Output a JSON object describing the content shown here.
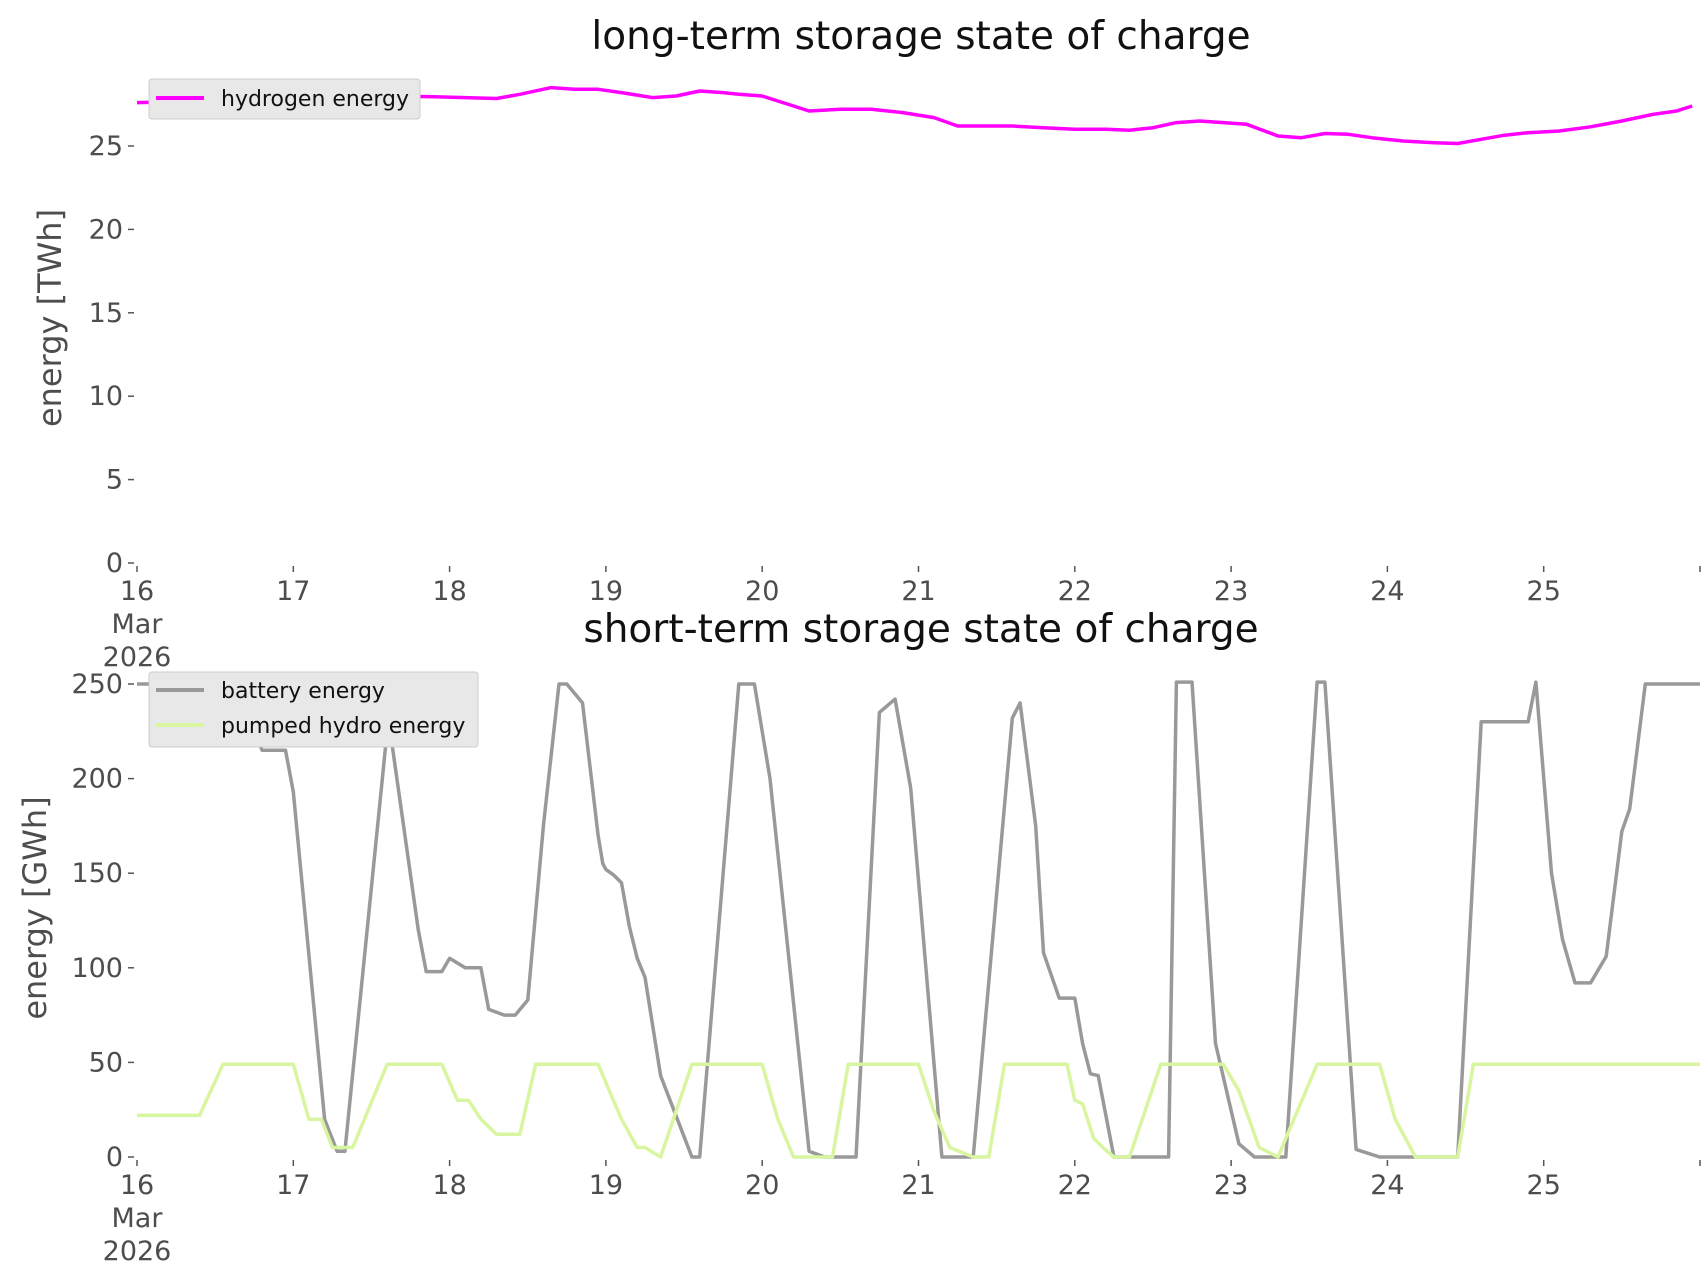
{
  "chart_data": [
    {
      "type": "line",
      "title": "long-term storage state of charge",
      "xlabel": "",
      "ylabel": "energy [TWh]",
      "x_tick_labels": [
        "16\nMar\n2026",
        "17",
        "18",
        "19",
        "20",
        "21",
        "22",
        "23",
        "24",
        "25"
      ],
      "xlim": [
        "2026-03-16",
        "2026-03-26"
      ],
      "ylim": [
        0,
        28.5
      ],
      "y_ticks": [
        0,
        5,
        10,
        15,
        20,
        25
      ],
      "grid": false,
      "legend": "top-left",
      "series": [
        {
          "name": "hydrogen energy",
          "color": "#ff00ff",
          "x_day_offsets": [
            0,
            0.5,
            0.8,
            1.0,
            1.3,
            1.6,
            1.9,
            2.1,
            2.3,
            2.45,
            2.65,
            2.8,
            2.95,
            3.1,
            3.3,
            3.45,
            3.6,
            3.75,
            3.85,
            4.0,
            4.2,
            4.3,
            4.5,
            4.7,
            4.9,
            5.1,
            5.25,
            5.4,
            5.6,
            5.8,
            6.0,
            6.2,
            6.35,
            6.5,
            6.65,
            6.8,
            6.95,
            7.1,
            7.3,
            7.45,
            7.6,
            7.75,
            7.9,
            8.1,
            8.3,
            8.45,
            8.6,
            8.75,
            8.9,
            9.1,
            9.3,
            9.5,
            9.7,
            9.85,
            9.95
          ],
          "values": [
            27.6,
            27.7,
            27.9,
            28.0,
            28.0,
            28.0,
            27.95,
            27.9,
            27.85,
            28.1,
            28.5,
            28.4,
            28.4,
            28.2,
            27.9,
            28.0,
            28.3,
            28.2,
            28.1,
            28.0,
            27.4,
            27.1,
            27.2,
            27.2,
            27.0,
            26.7,
            26.2,
            26.2,
            26.2,
            26.1,
            26.0,
            26.0,
            25.95,
            26.1,
            26.4,
            26.5,
            26.4,
            26.3,
            25.6,
            25.5,
            25.75,
            25.7,
            25.5,
            25.3,
            25.2,
            25.15,
            25.4,
            25.65,
            25.8,
            25.9,
            26.15,
            26.5,
            26.9,
            27.1,
            27.4
          ]
        }
      ]
    },
    {
      "type": "line",
      "title": "short-term storage state of charge",
      "xlabel": "",
      "ylabel": "energy [GWh]",
      "x_tick_labels": [
        "16\nMar\n2026",
        "17",
        "18",
        "19",
        "20",
        "21",
        "22",
        "23",
        "24",
        "25"
      ],
      "xlim": [
        "2026-03-16",
        "2026-03-26"
      ],
      "ylim": [
        0,
        250
      ],
      "y_ticks": [
        0,
        50,
        100,
        150,
        200,
        250
      ],
      "grid": false,
      "legend": "top-left",
      "series": [
        {
          "name": "battery energy",
          "color": "#999999",
          "x_day_offsets": [
            0,
            0.65,
            0.8,
            0.95,
            1.0,
            1.2,
            1.28,
            1.33,
            1.6,
            1.62,
            1.8,
            1.85,
            1.95,
            2.0,
            2.1,
            2.2,
            2.25,
            2.35,
            2.42,
            2.5,
            2.6,
            2.7,
            2.75,
            2.85,
            2.95,
            2.98,
            3.0,
            3.05,
            3.1,
            3.15,
            3.2,
            3.25,
            3.35,
            3.55,
            3.6,
            3.85,
            3.95,
            4.05,
            4.3,
            4.4,
            4.5,
            4.6,
            4.75,
            4.85,
            4.95,
            5.15,
            5.3,
            5.35,
            5.6,
            5.65,
            5.75,
            5.8,
            5.9,
            6.0,
            6.05,
            6.1,
            6.15,
            6.25,
            6.5,
            6.6,
            6.65,
            6.75,
            6.9,
            7.05,
            7.15,
            7.25,
            7.35,
            7.55,
            7.6,
            7.8,
            7.95,
            8.15,
            8.45,
            8.6,
            8.8,
            8.9,
            8.95,
            9.05,
            9.12,
            9.2,
            9.3,
            9.4,
            9.5,
            9.55,
            9.65,
            10.0
          ],
          "values": [
            250,
            250,
            215,
            215,
            193,
            20,
            3,
            3,
            225,
            225,
            120,
            98,
            98,
            105,
            100,
            100,
            78,
            75,
            75,
            83,
            175,
            250,
            250,
            240,
            170,
            155,
            152,
            149,
            145,
            122,
            105,
            95,
            43,
            0,
            0,
            250,
            250,
            200,
            3,
            0,
            0,
            0,
            235,
            242,
            195,
            0,
            0,
            0,
            232,
            240,
            175,
            108,
            84,
            84,
            60,
            44,
            43,
            0,
            0,
            0,
            251,
            251,
            60,
            7,
            0,
            0,
            0,
            251,
            251,
            4,
            0,
            0,
            0,
            230,
            230,
            230,
            251,
            150,
            115,
            92,
            92,
            106,
            172,
            184,
            250,
            250
          ]
        },
        {
          "name": "pumped hydro energy",
          "color": "#d8f5a0",
          "x_day_offsets": [
            0,
            0.4,
            0.55,
            1.0,
            1.1,
            1.18,
            1.25,
            1.3,
            1.38,
            1.6,
            1.95,
            2.05,
            2.12,
            2.2,
            2.3,
            2.35,
            2.45,
            2.55,
            2.95,
            3.1,
            3.2,
            3.25,
            3.35,
            3.55,
            3.75,
            4.0,
            4.1,
            4.2,
            4.3,
            4.45,
            4.55,
            4.85,
            5.0,
            5.1,
            5.2,
            5.35,
            5.45,
            5.55,
            5.95,
            6.0,
            6.05,
            6.12,
            6.18,
            6.25,
            6.35,
            6.55,
            6.95,
            7.05,
            7.18,
            7.3,
            7.55,
            7.95,
            8.05,
            8.18,
            8.25,
            8.45,
            8.55,
            10.0
          ],
          "values": [
            22,
            22,
            49,
            49,
            20,
            20,
            5,
            5,
            5,
            49,
            49,
            30,
            30,
            20,
            12,
            12,
            12,
            49,
            49,
            20,
            5,
            5,
            0,
            49,
            49,
            49,
            20,
            0,
            0,
            0,
            49,
            49,
            49,
            24,
            5,
            0,
            0,
            49,
            49,
            30,
            28,
            10,
            5,
            0,
            0,
            49,
            49,
            35,
            5,
            0,
            49,
            49,
            20,
            0,
            0,
            0,
            49,
            49
          ]
        }
      ]
    }
  ]
}
